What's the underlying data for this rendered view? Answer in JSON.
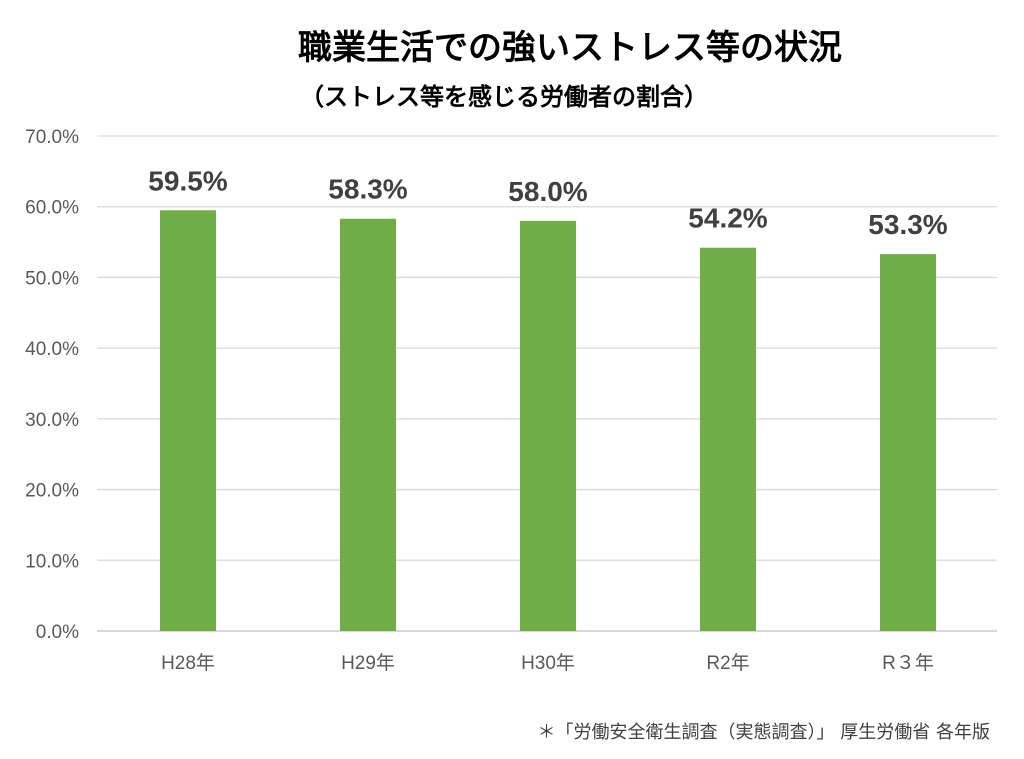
{
  "chart_data": {
    "type": "bar",
    "title": "職業生活での強いストレス等の状況",
    "subtitle": "（ストレス等を感じる労働者の割合）",
    "categories": [
      "H28年",
      "H29年",
      "H30年",
      "R2年",
      "R３年"
    ],
    "values": [
      59.5,
      58.3,
      58.0,
      54.2,
      53.3
    ],
    "data_labels": [
      "59.5%",
      "58.3%",
      "58.0%",
      "54.2%",
      "53.3%"
    ],
    "ylim": [
      0,
      70
    ],
    "ytick_values": [
      0,
      10,
      20,
      30,
      40,
      50,
      60,
      70
    ],
    "yticks": [
      "0.0%",
      "10.0%",
      "20.0%",
      "30.0%",
      "40.0%",
      "50.0%",
      "60.0%",
      "70.0%"
    ],
    "grid": true,
    "legend": "none",
    "bar_color": "#70AD47",
    "grid_color": "#D9D9D9"
  },
  "footnote": "＊「労働安全衛生調査（実態調査）」 厚生労働省 各年版"
}
